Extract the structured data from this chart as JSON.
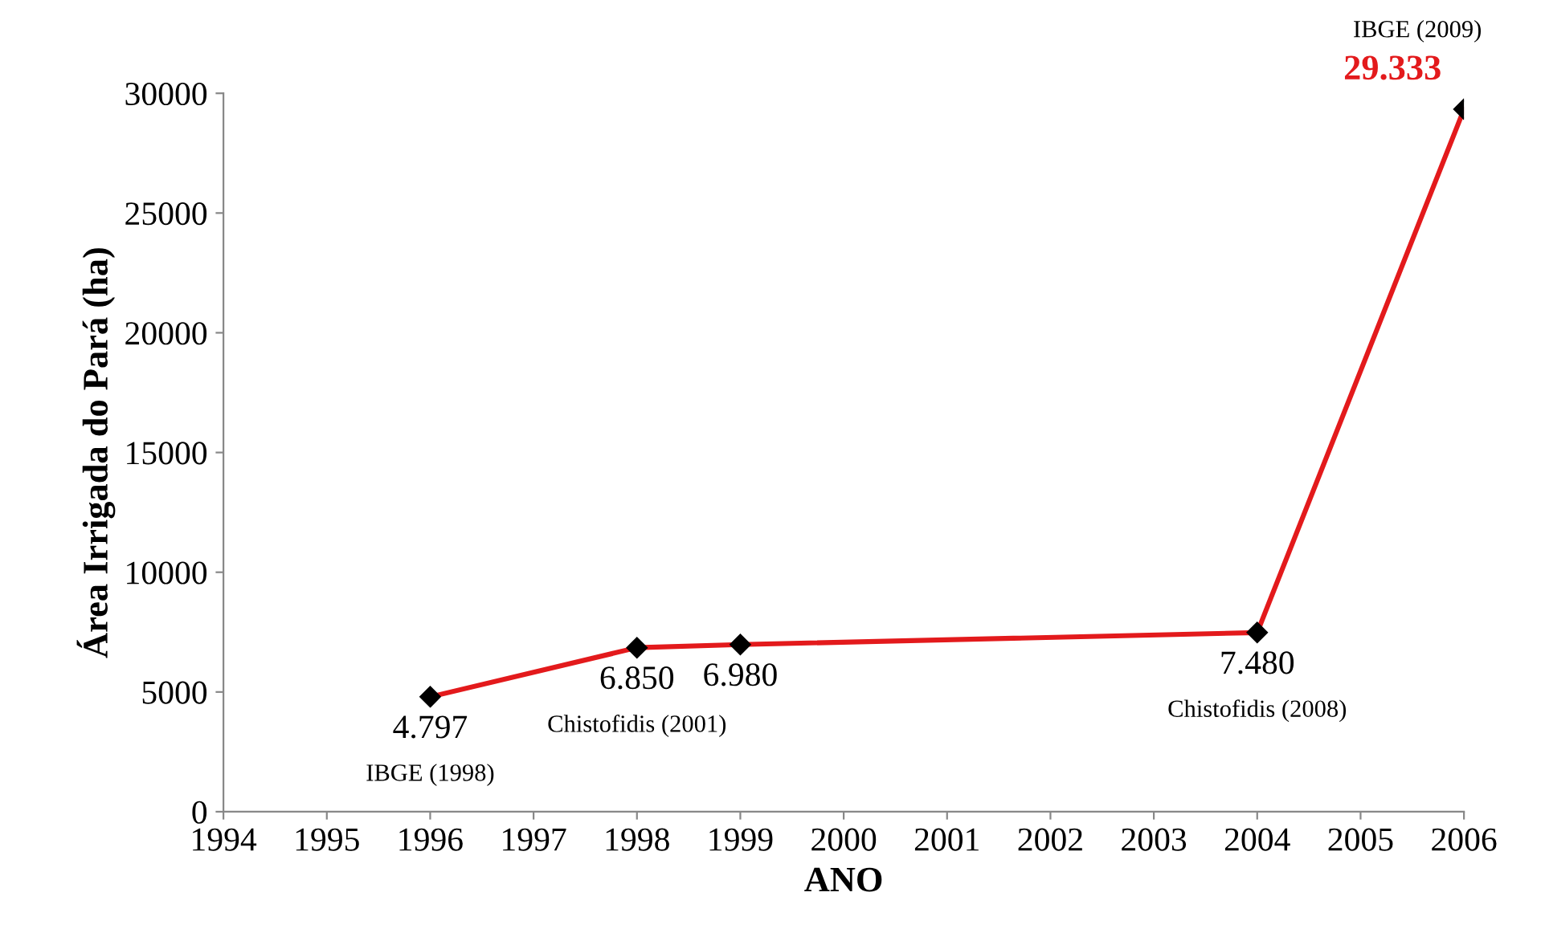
{
  "chart_data": {
    "type": "line",
    "xlabel": "ANO",
    "ylabel": "Área Irrigada do Pará (ha)",
    "x": [
      1996,
      1998,
      1999,
      2004,
      2006
    ],
    "series": [
      {
        "color": "#e31a1c",
        "values": [
          4797,
          6850,
          6980,
          7480,
          29333
        ],
        "value_labels": [
          "4.797",
          "6.850",
          "6.980",
          "7.480",
          "29.333"
        ]
      }
    ],
    "marker": "diamond",
    "line_style": "solid",
    "grid": false,
    "legend": false,
    "xlim": [
      1994,
      2006
    ],
    "xticks": [
      1994,
      1995,
      1996,
      1997,
      1998,
      1999,
      2000,
      2001,
      2002,
      2003,
      2004,
      2005,
      2006
    ],
    "ylim": [
      0,
      30000
    ],
    "yticks": [
      0,
      5000,
      10000,
      15000,
      20000,
      25000,
      30000
    ],
    "annotations": [
      {
        "text": "IBGE (1998)",
        "x": 1996,
        "y": 4797
      },
      {
        "text": "Chistofidis (2001)",
        "x": 1998,
        "y": 6850
      },
      {
        "text": "Chistofidis (2008)",
        "x": 2004,
        "y": 7480
      },
      {
        "text": "IBGE (2009)",
        "x": 2006,
        "y": 29333
      }
    ]
  }
}
